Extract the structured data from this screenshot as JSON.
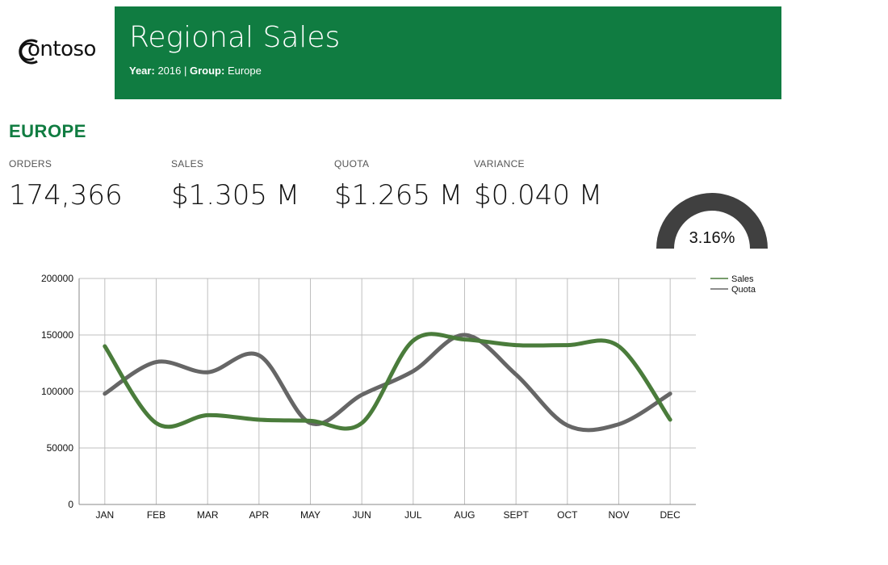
{
  "logo": {
    "text": "ontoso"
  },
  "header": {
    "title": "Regional Sales",
    "year_label": "Year:",
    "year": "2016",
    "separator": "|",
    "group_label": "Group:",
    "group": "Europe",
    "color": "#107c41"
  },
  "region": {
    "title": "EUROPE"
  },
  "kpis": [
    {
      "label": "ORDERS",
      "value": "174,366"
    },
    {
      "label": "SALES",
      "value": "$1.305 M"
    },
    {
      "label": "QUOTA",
      "value": "$1.265 M"
    },
    {
      "label": "VARIANCE",
      "value": "$0.040 M"
    }
  ],
  "gauge": {
    "value": "3.16%",
    "color": "#404040"
  },
  "chart_data": {
    "type": "line",
    "categories": [
      "JAN",
      "FEB",
      "MAR",
      "APR",
      "MAY",
      "JUN",
      "JUL",
      "AUG",
      "SEPT",
      "OCT",
      "NOV",
      "DEC"
    ],
    "series": [
      {
        "name": "Sales",
        "color": "#4a7c3b",
        "values": [
          140000,
          72000,
          79000,
          75000,
          74000,
          72000,
          145000,
          146000,
          141000,
          141000,
          140000,
          75000
        ]
      },
      {
        "name": "Quota",
        "color": "#666666",
        "values": [
          98000,
          126000,
          117000,
          132000,
          72000,
          97000,
          118000,
          150000,
          115000,
          70000,
          71000,
          98000
        ]
      }
    ],
    "yticks": [
      0,
      50000,
      100000,
      150000,
      200000
    ],
    "ylim": [
      0,
      200000
    ],
    "grid": true,
    "legend": "top-right"
  }
}
